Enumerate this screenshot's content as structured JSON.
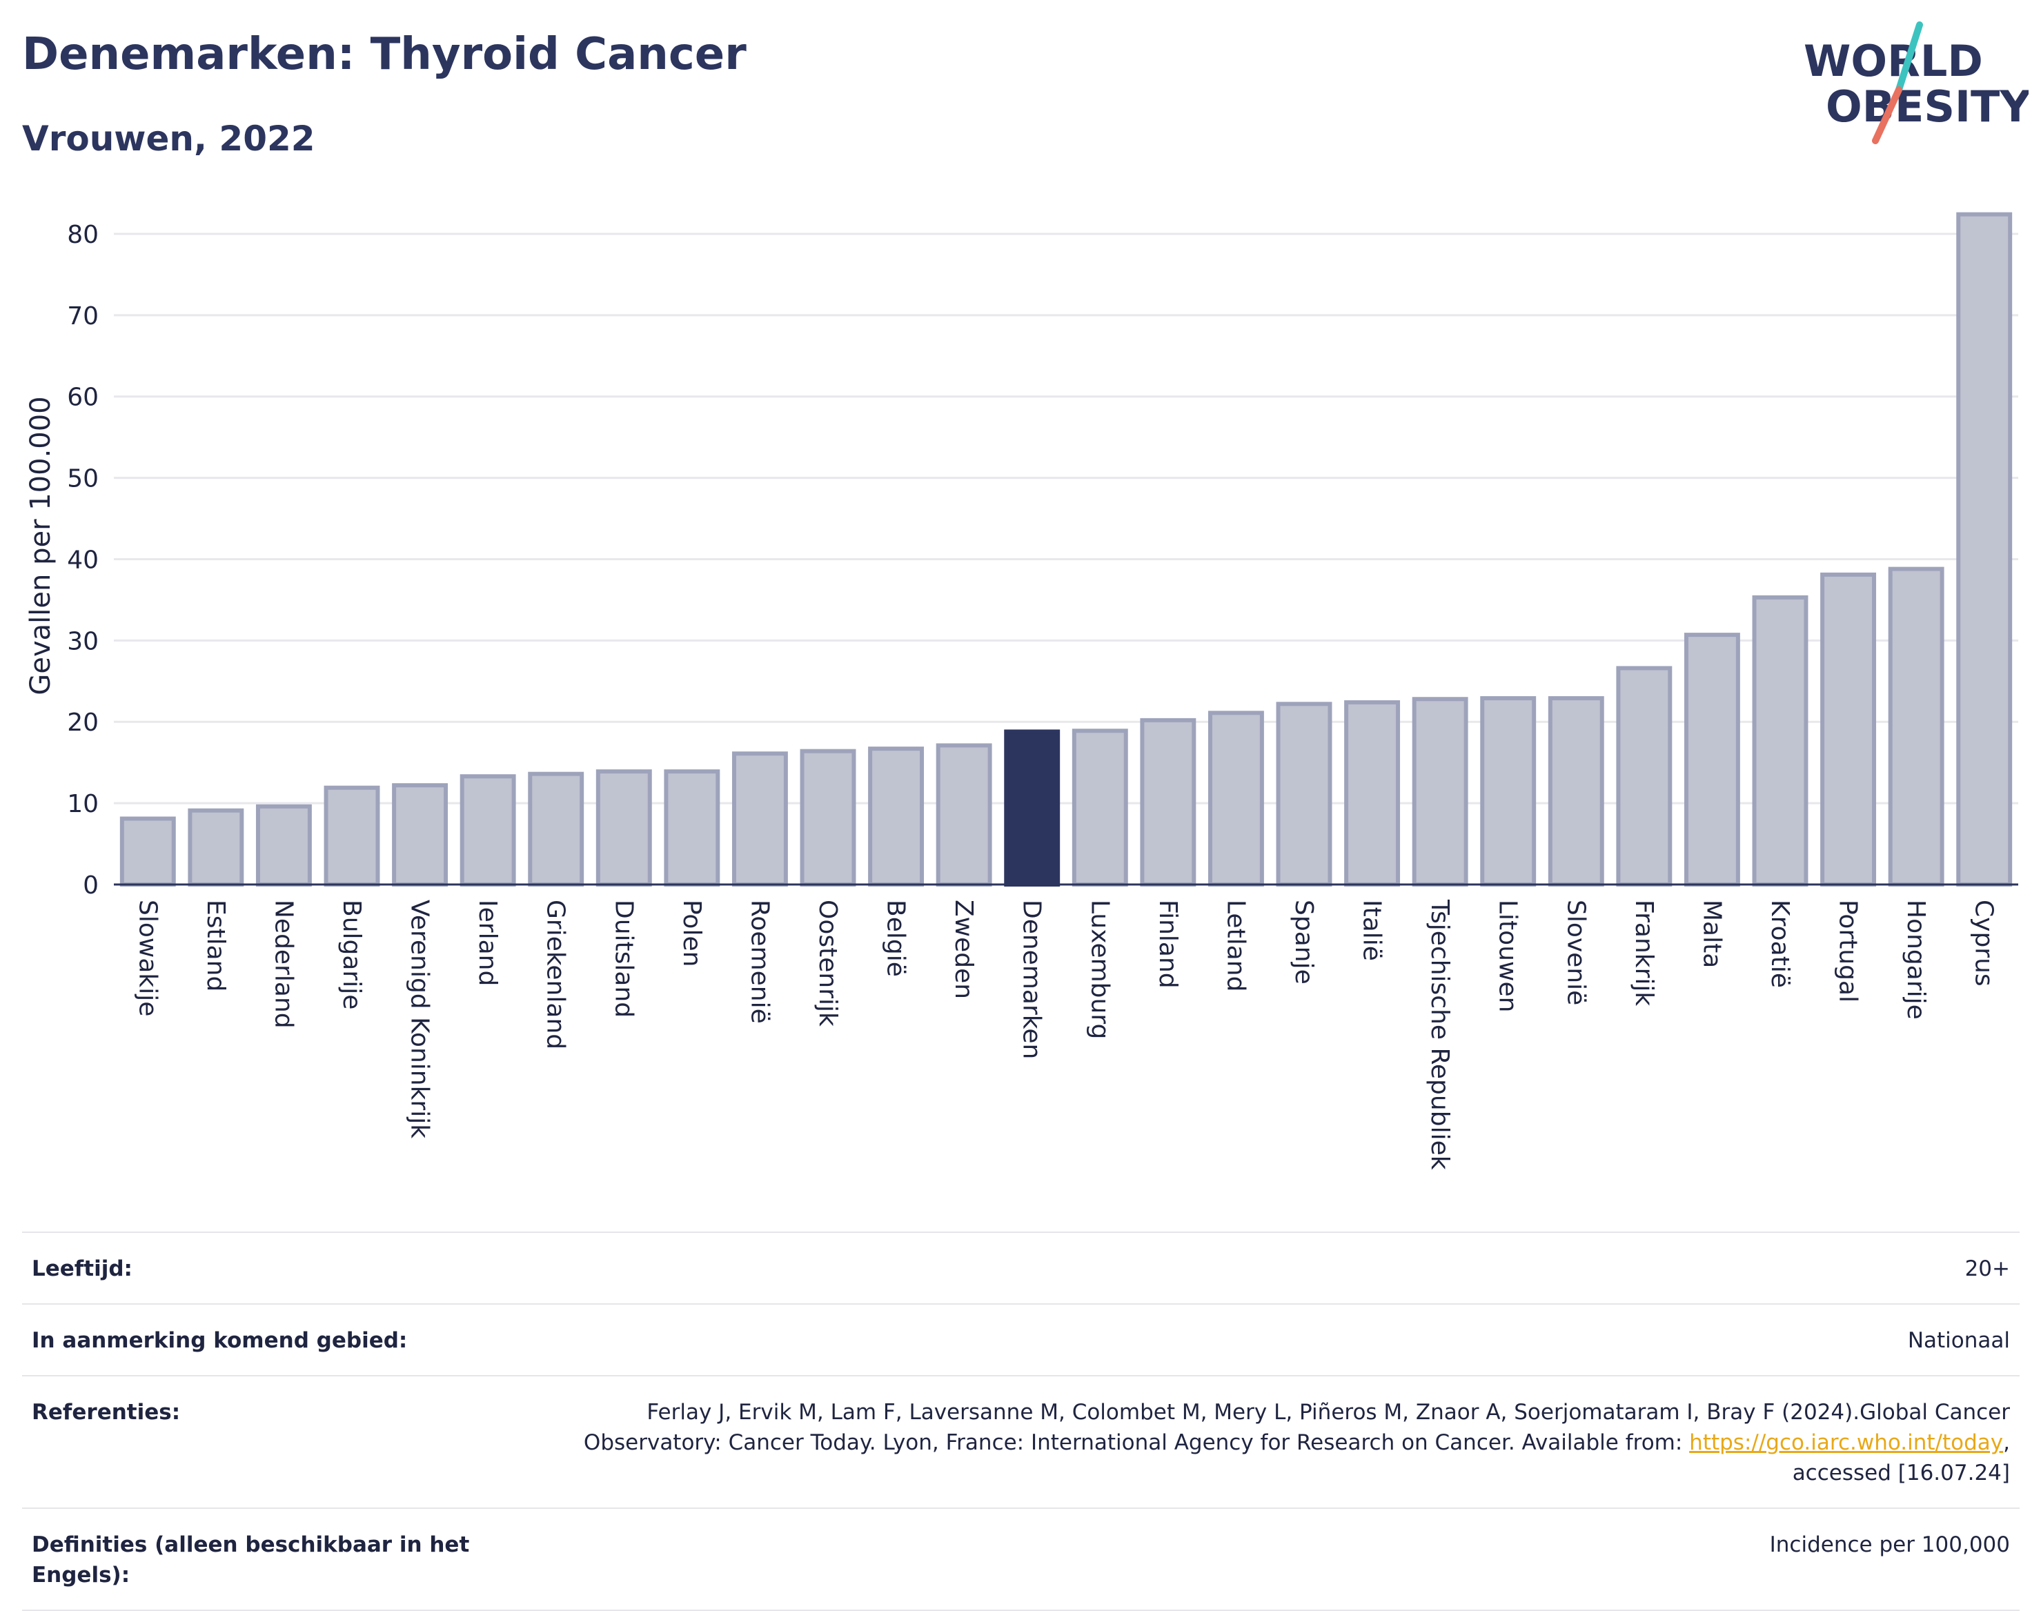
{
  "header": {
    "title": "Denemarken: Thyroid Cancer",
    "subtitle": "Vrouwen, 2022"
  },
  "logo": {
    "line1": "WORLD",
    "line2": "OBESITY",
    "slash_colors": [
      "#3cc3c0",
      "#e8715f"
    ],
    "text_color": "#2c355e"
  },
  "colors": {
    "bar": "#c0c3d0",
    "bar_border": "#9ea3bb",
    "highlight": "#2c355e",
    "grid": "#e8e8ec",
    "axis": "#2c355e",
    "link": "#e8a817"
  },
  "chart_data": {
    "type": "bar",
    "title": "Denemarken: Thyroid Cancer",
    "subtitle": "Vrouwen, 2022",
    "ylabel": "Gevallen per 100.000",
    "xlabel": "",
    "ylim": [
      0,
      85
    ],
    "yticks": [
      0,
      10,
      20,
      30,
      40,
      50,
      60,
      70,
      80
    ],
    "grid": true,
    "highlight": "Denemarken",
    "categories": [
      "Slowakije",
      "Estland",
      "Nederland",
      "Bulgarije",
      "Verenigd Koninkrijk",
      "Ierland",
      "Griekenland",
      "Duitsland",
      "Polen",
      "Roemenië",
      "Oostenrijk",
      "België",
      "Zweden",
      "Denemarken",
      "Luxemburg",
      "Finland",
      "Letland",
      "Spanje",
      "Italië",
      "Tsjechische Republiek",
      "Litouwen",
      "Slovenië",
      "Frankrijk",
      "Malta",
      "Kroatië",
      "Portugal",
      "Hongarije",
      "Cyprus"
    ],
    "values": [
      8.1,
      9.1,
      9.6,
      11.9,
      12.2,
      13.3,
      13.6,
      13.9,
      13.9,
      16.1,
      16.4,
      16.7,
      17.1,
      18.8,
      18.9,
      20.2,
      21.1,
      22.2,
      22.4,
      22.8,
      22.9,
      22.9,
      26.6,
      30.7,
      35.3,
      38.1,
      38.8,
      82.4
    ]
  },
  "info": {
    "rows": [
      {
        "label": "Leeftijd:",
        "value": "20+"
      },
      {
        "label": "In aanmerking komend gebied:",
        "value": "Nationaal"
      },
      {
        "label": "Referenties:",
        "value_pre": "Ferlay J, Ervik M, Lam F, Laversanne M, Colombet M, Mery L, Piñeros M, Znaor A, Soerjomataram I, Bray F (2024).Global Cancer Observatory: Cancer Today. Lyon, France: International Agency for Research on Cancer. Available from: ",
        "link": "https://gco.iarc.who.int/today",
        "value_post": ", accessed [16.07.24]"
      },
      {
        "label": "Definities (alleen beschikbaar in het Engels):",
        "value": "Incidence per 100,000"
      }
    ]
  }
}
